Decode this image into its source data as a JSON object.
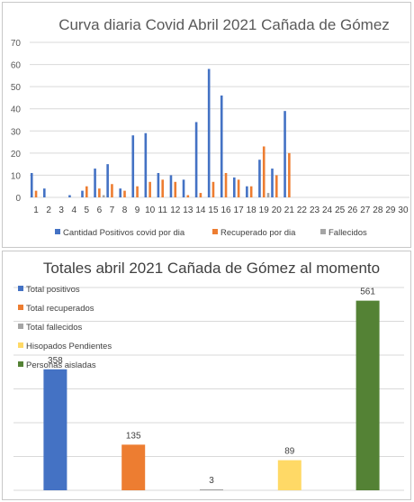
{
  "chart_data": [
    {
      "type": "bar",
      "title": "Curva diaria Covid Abril 2021 Cañada de Gómez",
      "xlabel": "",
      "ylabel": "",
      "categories": [
        "1",
        "2",
        "3",
        "4",
        "5",
        "6",
        "7",
        "8",
        "9",
        "10",
        "11",
        "12",
        "13",
        "14",
        "15",
        "16",
        "17",
        "18",
        "19",
        "20",
        "21",
        "22",
        "23",
        "24",
        "25",
        "26",
        "27",
        "28",
        "29",
        "30"
      ],
      "ylim": [
        0,
        70
      ],
      "yticks": [
        0,
        10,
        20,
        30,
        40,
        50,
        60,
        70
      ],
      "grid": true,
      "legend": "bottom",
      "series": [
        {
          "name": "Cantidad Positivos covid por dia",
          "color": "#4472C4",
          "values": [
            11,
            4,
            0,
            1,
            3,
            13,
            15,
            4,
            28,
            29,
            11,
            10,
            8,
            34,
            58,
            46,
            9,
            5,
            17,
            13,
            39,
            0,
            0,
            0,
            0,
            0,
            0,
            0,
            0,
            0
          ]
        },
        {
          "name": "Recuperado por dia",
          "color": "#ED7D31",
          "values": [
            3,
            0,
            0,
            0,
            5,
            4,
            6,
            3,
            5,
            7,
            8,
            7,
            1,
            2,
            7,
            11,
            8,
            5,
            23,
            10,
            20,
            0,
            0,
            0,
            0,
            0,
            0,
            0,
            0,
            0
          ]
        },
        {
          "name": "Fallecidos",
          "color": "#A5A5A5",
          "values": [
            0,
            0,
            0,
            0,
            0,
            1,
            0,
            0,
            0,
            0,
            0,
            0,
            0,
            0,
            0,
            0,
            0,
            0,
            2,
            0,
            0,
            0,
            0,
            0,
            0,
            0,
            0,
            0,
            0,
            0
          ]
        }
      ]
    },
    {
      "type": "bar",
      "title": "Totales abril 2021 Cañada de Gómez al momento",
      "xlabel": "",
      "ylabel": "",
      "ylim": [
        0,
        600
      ],
      "grid": true,
      "legend": "top-left",
      "categories": [
        "Total positivos",
        "Total recuperados",
        "Total fallecidos",
        "Hisopados Pendientes",
        "Personas aisladas"
      ],
      "values": [
        358,
        135,
        3,
        89,
        561
      ],
      "data_labels": [
        "358",
        "135",
        "3",
        "89",
        "561"
      ],
      "colors": [
        "#4472C4",
        "#ED7D31",
        "#A5A5A5",
        "#FFD966",
        "#548235"
      ]
    }
  ]
}
